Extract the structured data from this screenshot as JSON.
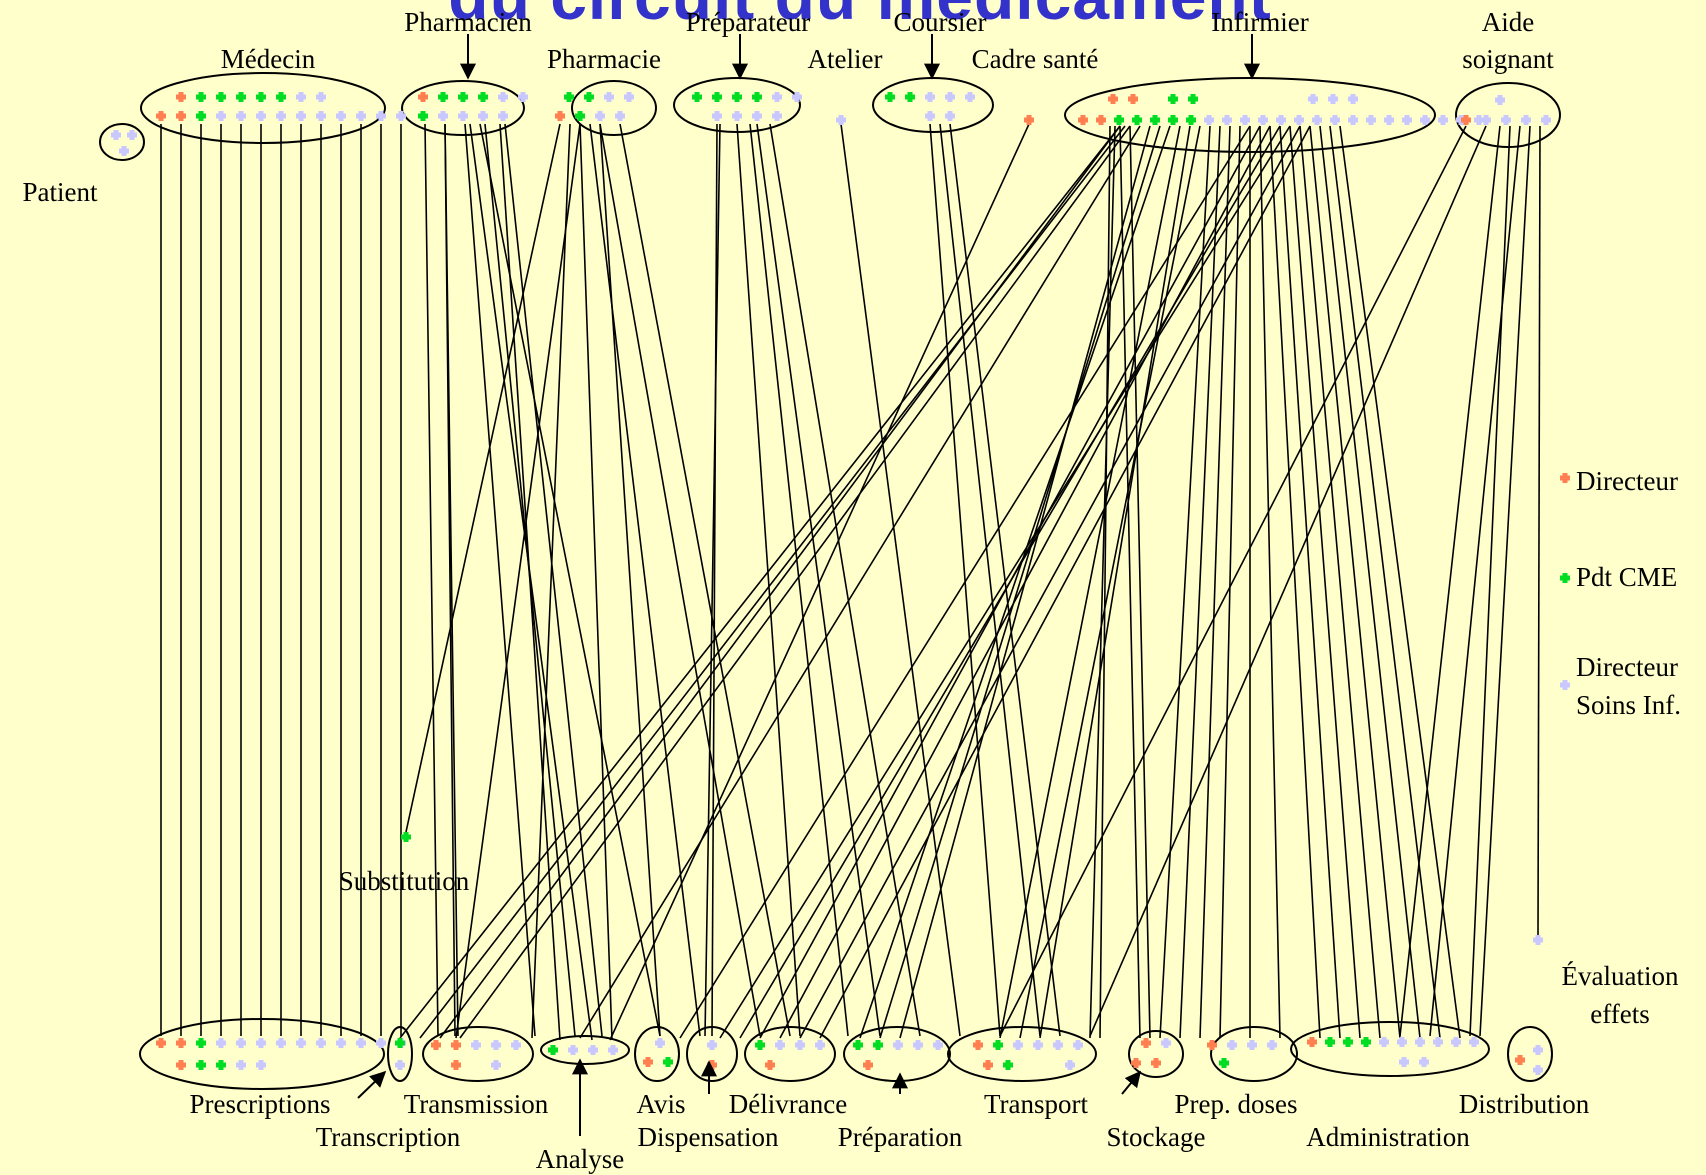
{
  "title": "du circuit du médicament",
  "roles": {
    "medecin": "Médecin",
    "pharmacien": "Pharmacien",
    "pharmacie": "Pharmacie",
    "preparateur": "Préparateur",
    "atelier": "Atelier",
    "coursier": "Coursier",
    "cadre_sante": "Cadre santé",
    "infirmier": "Infirmier",
    "aide_soignant_1": "Aide",
    "aide_soignant_2": "soignant",
    "patient": "Patient"
  },
  "steps": {
    "prescriptions": "Prescriptions",
    "transcription": "Transcription",
    "transmission": "Transmission",
    "analyse": "Analyse",
    "avis": "Avis",
    "dispensation": "Dispensation",
    "delivrance": "Délivrance",
    "preparation": "Préparation",
    "transport": "Transport",
    "stockage": "Stockage",
    "prep_doses": "Prep. doses",
    "administration": "Administration",
    "distribution": "Distribution",
    "substitution": "Substitution",
    "evaluation_1": "Évaluation",
    "evaluation_2": "effets"
  },
  "legend": {
    "directeur": "Directeur",
    "pdt_cme": "Pdt CME",
    "dsi_1": "Directeur",
    "dsi_2": "Soins Inf."
  },
  "colors": {
    "background": "#ffffcc",
    "title": "#3333cc",
    "directeur": "#ff7f50",
    "pdt_cme": "#00dd22",
    "dsi": "#c8c8ff",
    "line": "#000000"
  }
}
